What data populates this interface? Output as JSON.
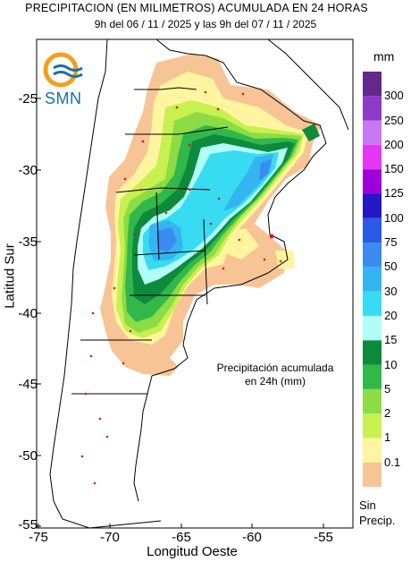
{
  "title": "PRECIPITACION (EN MILIMETROS) ACUMULADA EN 24 HORAS",
  "subtitle": "9h del 06 / 11 / 2025  y las 9h del 07 / 11 / 2025",
  "logo": {
    "text": "SMN",
    "icon": "smn-logo-icon"
  },
  "axes": {
    "xlabel": "Longitud Oeste",
    "ylabel": "Latitud Sur",
    "xticks": [
      "-75",
      "-70",
      "-65",
      "-60",
      "-55"
    ],
    "yticks": [
      "-25",
      "-30",
      "-35",
      "-40",
      "-45",
      "-50",
      "-55"
    ],
    "xlim": [
      -75,
      -52.6
    ],
    "ylim": [
      -55,
      -20.5
    ]
  },
  "legend": {
    "units": "mm",
    "nodata_label": "Sin\nPrecip.",
    "levels": [
      {
        "label": "0.1",
        "color": "#f7c496"
      },
      {
        "label": "1",
        "color": "#fff59e"
      },
      {
        "label": "2",
        "color": "#c8f050"
      },
      {
        "label": "5",
        "color": "#8cdc46"
      },
      {
        "label": "10",
        "color": "#32b84a"
      },
      {
        "label": "15",
        "color": "#0e8a3c"
      },
      {
        "label": "20",
        "color": "#b2fff7"
      },
      {
        "label": "30",
        "color": "#38dcf2"
      },
      {
        "label": "50",
        "color": "#34b4f0"
      },
      {
        "label": "75",
        "color": "#3a8cf0"
      },
      {
        "label": "100",
        "color": "#2a5ae6"
      },
      {
        "label": "125",
        "color": "#2418c8"
      },
      {
        "label": "150",
        "color": "#a000d8"
      },
      {
        "label": "200",
        "color": "#e436f4"
      },
      {
        "label": "250",
        "color": "#c878f0"
      },
      {
        "label": "300",
        "color": "#8c3cc8"
      },
      {
        "label": "",
        "color": "#64288c"
      }
    ]
  },
  "annotation": "Precipitación acumulada\nen 24h (mm)",
  "colors": {
    "station_dot": "#e0141e",
    "border": "#000000"
  }
}
